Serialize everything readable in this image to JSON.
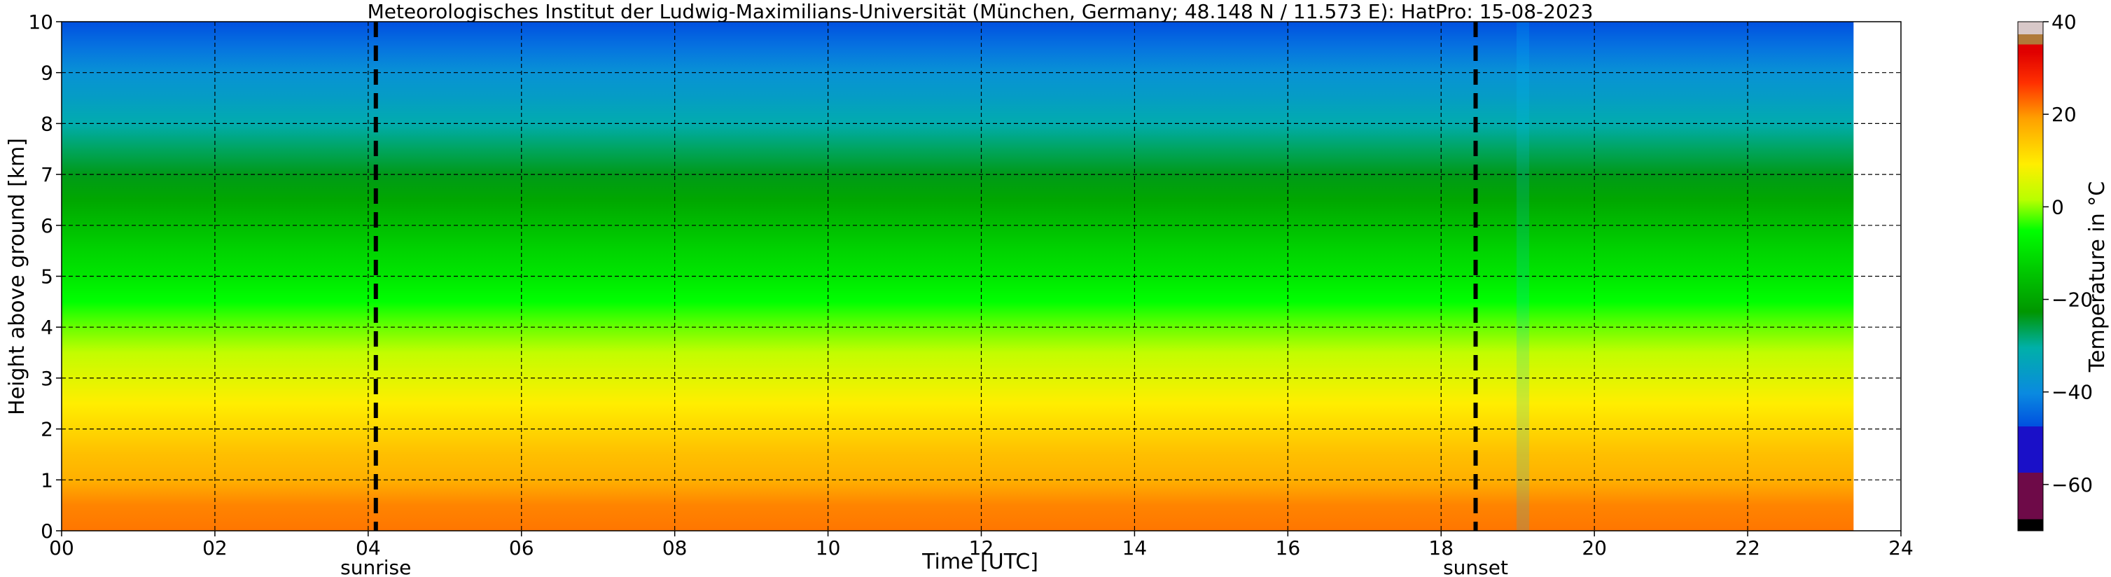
{
  "chart_data": {
    "type": "heatmap",
    "title": "Meteorologisches Institut der Ludwig-Maximilians-Universität (München, Germany; 48.148 N / 11.573 E):    HatPro: 15-08-2023",
    "xlabel": "Time [UTC]",
    "ylabel": "Height above ground [km]",
    "colorbar_label": "Temperature in °C",
    "xlim": [
      0,
      24
    ],
    "ylim": [
      0,
      10
    ],
    "x_ticks": [
      0,
      2,
      4,
      6,
      8,
      10,
      12,
      14,
      16,
      18,
      20,
      22,
      24
    ],
    "x_tick_labels": [
      "00",
      "02",
      "04",
      "06",
      "08",
      "10",
      "12",
      "14",
      "16",
      "18",
      "20",
      "22",
      "24"
    ],
    "y_ticks": [
      0,
      1,
      2,
      3,
      4,
      5,
      6,
      7,
      8,
      9,
      10
    ],
    "y_tick_labels": [
      "0",
      "1",
      "2",
      "3",
      "4",
      "5",
      "6",
      "7",
      "8",
      "9",
      "10"
    ],
    "grid": true,
    "colorbar": {
      "range": [
        -70,
        40
      ],
      "ticks": [
        40,
        20,
        0,
        -20,
        -40,
        -60
      ],
      "tick_labels": [
        "40",
        "20",
        "0",
        "−20",
        "−40",
        "−60"
      ]
    },
    "annotations": [
      {
        "label": "sunrise",
        "x": 4.1
      },
      {
        "label": "sunset",
        "x": 18.45
      }
    ],
    "data_end_x": 23.4,
    "temperature_profile_km_degC": [
      [
        0,
        22
      ],
      [
        0.5,
        21
      ],
      [
        1,
        17
      ],
      [
        1.5,
        15
      ],
      [
        2,
        12
      ],
      [
        2.5,
        9
      ],
      [
        3,
        6
      ],
      [
        3.5,
        3
      ],
      [
        4,
        -1
      ],
      [
        4.5,
        -5
      ],
      [
        5,
        -9
      ],
      [
        5.5,
        -12
      ],
      [
        6,
        -16
      ],
      [
        6.5,
        -20
      ],
      [
        7,
        -24
      ],
      [
        7.5,
        -27
      ],
      [
        8,
        -31
      ],
      [
        8.5,
        -35
      ],
      [
        9,
        -38
      ],
      [
        9.5,
        -42
      ],
      [
        10,
        -45
      ]
    ]
  }
}
